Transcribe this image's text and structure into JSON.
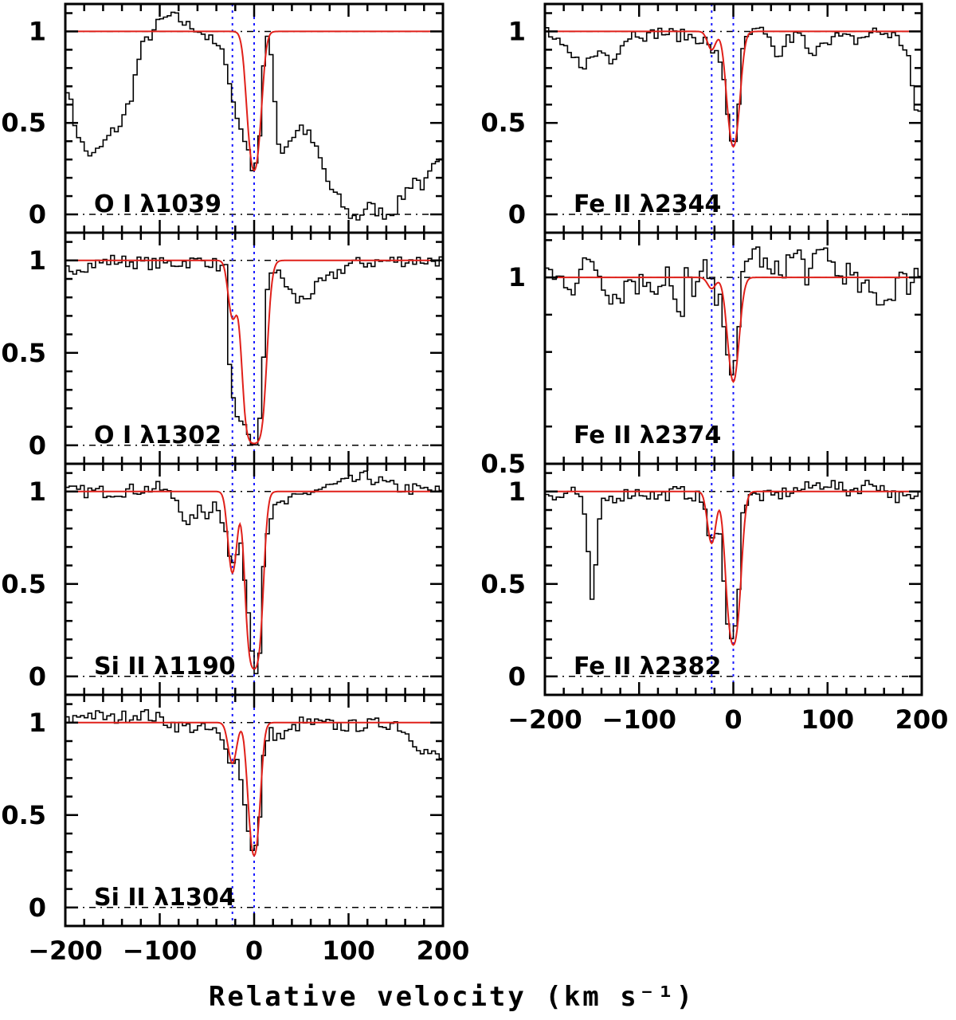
{
  "chart_data": {
    "type": "line",
    "xlabel": "Relative velocity (km s⁻¹)",
    "xlim": [
      -200,
      200
    ],
    "xticks": [
      -200,
      -100,
      0,
      100,
      200
    ],
    "xtick_labels": [
      "−200",
      "−100",
      "0",
      "100",
      "200"
    ],
    "component_velocities": [
      -23,
      0
    ],
    "colors": {
      "data": "#000000",
      "fit": "#e0201a",
      "components": "#1a1aff",
      "zero_line": "#000000"
    },
    "panels": [
      {
        "label": "O I λ1039",
        "ylim": [
          -0.1,
          1.15
        ],
        "yticks": [
          0,
          0.5,
          1
        ],
        "ytick_labels": [
          "0",
          "0.5",
          "1"
        ],
        "fit_components": [
          {
            "v": -23,
            "depth": 0.0,
            "b": 7
          },
          {
            "v": 0,
            "depth": 0.76,
            "b": 8
          }
        ],
        "data_anchors": [
          [
            -200,
            0.75
          ],
          [
            -190,
            0.5
          ],
          [
            -180,
            0.35
          ],
          [
            -170,
            0.32
          ],
          [
            -160,
            0.38
          ],
          [
            -150,
            0.45
          ],
          [
            -140,
            0.5
          ],
          [
            -130,
            0.65
          ],
          [
            -120,
            0.9
          ],
          [
            -110,
            0.98
          ],
          [
            -100,
            1.05
          ],
          [
            -90,
            1.08
          ],
          [
            -80,
            1.07
          ],
          [
            -70,
            1.03
          ],
          [
            -60,
            1.02
          ],
          [
            -50,
            0.97
          ],
          [
            -40,
            0.92
          ],
          [
            -30,
            0.85
          ],
          [
            -20,
            0.55
          ],
          [
            -10,
            0.42
          ],
          [
            -5,
            0.3
          ],
          [
            0,
            0.25
          ],
          [
            5,
            0.35
          ],
          [
            10,
            0.8
          ],
          [
            15,
            0.98
          ],
          [
            20,
            0.8
          ],
          [
            25,
            0.4
          ],
          [
            30,
            0.35
          ],
          [
            40,
            0.42
          ],
          [
            50,
            0.48
          ],
          [
            60,
            0.42
          ],
          [
            70,
            0.3
          ],
          [
            80,
            0.15
          ],
          [
            90,
            0.08
          ],
          [
            100,
            0.0
          ],
          [
            110,
            -0.02
          ],
          [
            120,
            0.05
          ],
          [
            130,
            0.02
          ],
          [
            140,
            0.0
          ],
          [
            150,
            0.03
          ],
          [
            160,
            0.12
          ],
          [
            170,
            0.2
          ],
          [
            180,
            0.15
          ],
          [
            190,
            0.25
          ],
          [
            200,
            0.28
          ]
        ]
      },
      {
        "label": "O I λ1302",
        "ylim": [
          -0.1,
          1.15
        ],
        "yticks": [
          0,
          0.5,
          1
        ],
        "ytick_labels": [
          "0",
          "0.5",
          "1"
        ],
        "fit_components": [
          {
            "v": -23,
            "depth": 0.3,
            "b": 6
          },
          {
            "v": 0,
            "depth": 0.99,
            "b": 10
          }
        ],
        "data_anchors": [
          [
            -200,
            0.95
          ],
          [
            -150,
            1.0
          ],
          [
            -100,
            0.98
          ],
          [
            -50,
            1.0
          ],
          [
            -30,
            0.95
          ],
          [
            -25,
            0.35
          ],
          [
            -20,
            0.15
          ],
          [
            -15,
            0.1
          ],
          [
            -10,
            0.08
          ],
          [
            -5,
            0.03
          ],
          [
            0,
            0.0
          ],
          [
            5,
            0.05
          ],
          [
            10,
            0.45
          ],
          [
            15,
            0.95
          ],
          [
            20,
            0.95
          ],
          [
            30,
            0.9
          ],
          [
            40,
            0.82
          ],
          [
            45,
            0.78
          ],
          [
            55,
            0.8
          ],
          [
            70,
            0.87
          ],
          [
            80,
            0.9
          ],
          [
            100,
            0.98
          ],
          [
            150,
            1.0
          ],
          [
            200,
            1.0
          ]
        ]
      },
      {
        "label": "Si II λ1190",
        "ylim": [
          -0.1,
          1.15
        ],
        "yticks": [
          0,
          0.5,
          1
        ],
        "ytick_labels": [
          "0",
          "0.5",
          "1"
        ],
        "fit_components": [
          {
            "v": -23,
            "depth": 0.44,
            "b": 6
          },
          {
            "v": 0,
            "depth": 0.96,
            "b": 8
          }
        ],
        "data_anchors": [
          [
            -200,
            1.0
          ],
          [
            -150,
            1.0
          ],
          [
            -100,
            1.02
          ],
          [
            -80,
            0.95
          ],
          [
            -70,
            0.8
          ],
          [
            -60,
            0.9
          ],
          [
            -50,
            0.88
          ],
          [
            -40,
            0.95
          ],
          [
            -30,
            0.8
          ],
          [
            -25,
            0.6
          ],
          [
            -20,
            0.62
          ],
          [
            -15,
            0.72
          ],
          [
            -10,
            0.55
          ],
          [
            -5,
            0.3
          ],
          [
            0,
            0.05
          ],
          [
            5,
            0.05
          ],
          [
            10,
            0.6
          ],
          [
            15,
            0.85
          ],
          [
            25,
            0.92
          ],
          [
            40,
            0.95
          ],
          [
            60,
            1.0
          ],
          [
            100,
            1.05
          ],
          [
            120,
            1.08
          ],
          [
            150,
            1.02
          ],
          [
            200,
            1.0
          ]
        ]
      },
      {
        "label": "Si II λ1304",
        "ylim": [
          -0.1,
          1.15
        ],
        "yticks": [
          0,
          0.5,
          1
        ],
        "ytick_labels": [
          "0",
          "0.5",
          "1"
        ],
        "fit_components": [
          {
            "v": -23,
            "depth": 0.22,
            "b": 6
          },
          {
            "v": 0,
            "depth": 0.72,
            "b": 7
          }
        ],
        "data_anchors": [
          [
            -200,
            1.0
          ],
          [
            -180,
            1.05
          ],
          [
            -150,
            1.02
          ],
          [
            -120,
            1.05
          ],
          [
            -100,
            1.02
          ],
          [
            -80,
            0.98
          ],
          [
            -60,
            0.97
          ],
          [
            -40,
            0.95
          ],
          [
            -30,
            0.85
          ],
          [
            -25,
            0.8
          ],
          [
            -20,
            0.82
          ],
          [
            -15,
            0.75
          ],
          [
            -10,
            0.55
          ],
          [
            -5,
            0.4
          ],
          [
            0,
            0.28
          ],
          [
            5,
            0.4
          ],
          [
            10,
            0.8
          ],
          [
            15,
            0.95
          ],
          [
            30,
            0.92
          ],
          [
            50,
            1.0
          ],
          [
            100,
            0.98
          ],
          [
            150,
            1.0
          ],
          [
            180,
            0.85
          ],
          [
            200,
            0.8
          ]
        ]
      },
      {
        "label": "Fe II λ2344",
        "ylim": [
          -0.1,
          1.15
        ],
        "yticks": [
          0,
          0.5,
          1
        ],
        "ytick_labels": [
          "0",
          "0.5",
          "1"
        ],
        "fit_components": [
          {
            "v": -23,
            "depth": 0.1,
            "b": 6
          },
          {
            "v": 0,
            "depth": 0.63,
            "b": 8
          }
        ],
        "data_anchors": [
          [
            -200,
            1.02
          ],
          [
            -190,
            0.95
          ],
          [
            -180,
            0.9
          ],
          [
            -170,
            0.85
          ],
          [
            -160,
            0.82
          ],
          [
            -150,
            0.85
          ],
          [
            -140,
            0.9
          ],
          [
            -130,
            0.85
          ],
          [
            -120,
            0.92
          ],
          [
            -110,
            0.98
          ],
          [
            -100,
            1.0
          ],
          [
            -90,
            0.97
          ],
          [
            -80,
            1.0
          ],
          [
            -60,
            0.98
          ],
          [
            -40,
            0.97
          ],
          [
            -30,
            0.95
          ],
          [
            -25,
            0.9
          ],
          [
            -20,
            0.9
          ],
          [
            -10,
            0.75
          ],
          [
            -5,
            0.5
          ],
          [
            0,
            0.36
          ],
          [
            5,
            0.5
          ],
          [
            10,
            0.88
          ],
          [
            15,
            0.98
          ],
          [
            30,
            1.0
          ],
          [
            40,
            0.92
          ],
          [
            50,
            0.85
          ],
          [
            55,
            0.95
          ],
          [
            70,
            0.98
          ],
          [
            75,
            0.95
          ],
          [
            85,
            0.82
          ],
          [
            90,
            0.95
          ],
          [
            110,
            0.97
          ],
          [
            130,
            0.95
          ],
          [
            150,
            1.0
          ],
          [
            170,
            0.98
          ],
          [
            185,
            0.9
          ],
          [
            190,
            0.7
          ],
          [
            195,
            0.5
          ],
          [
            200,
            0.6
          ]
        ]
      },
      {
        "label": "Fe II λ2374",
        "ylim": [
          0.5,
          1.12
        ],
        "yticks": [
          0.5,
          1
        ],
        "ytick_labels": [
          "0.5",
          "1"
        ],
        "fit_components": [
          {
            "v": -23,
            "depth": 0.03,
            "b": 6
          },
          {
            "v": 0,
            "depth": 0.28,
            "b": 8
          }
        ],
        "data_anchors": [
          [
            -200,
            1.05
          ],
          [
            -190,
            0.99
          ],
          [
            -180,
            1.0
          ],
          [
            -170,
            0.98
          ],
          [
            -160,
            1.02
          ],
          [
            -150,
            1.05
          ],
          [
            -140,
            1.0
          ],
          [
            -130,
            0.96
          ],
          [
            -120,
            0.95
          ],
          [
            -110,
            1.0
          ],
          [
            -100,
            0.98
          ],
          [
            -90,
            1.0
          ],
          [
            -80,
            0.97
          ],
          [
            -70,
            1.02
          ],
          [
            -60,
            0.9
          ],
          [
            -55,
            0.87
          ],
          [
            -50,
            1.0
          ],
          [
            -40,
            0.97
          ],
          [
            -30,
            1.02
          ],
          [
            -20,
            0.95
          ],
          [
            -10,
            0.9
          ],
          [
            -5,
            0.8
          ],
          [
            0,
            0.72
          ],
          [
            5,
            0.8
          ],
          [
            10,
            1.0
          ],
          [
            15,
            1.05
          ],
          [
            20,
            1.08
          ],
          [
            30,
            1.05
          ],
          [
            40,
            1.0
          ],
          [
            50,
            1.02
          ],
          [
            60,
            1.05
          ],
          [
            70,
            1.06
          ],
          [
            80,
            1.0
          ],
          [
            90,
            1.05
          ],
          [
            100,
            1.08
          ],
          [
            110,
            1.0
          ],
          [
            120,
            1.02
          ],
          [
            130,
            0.98
          ],
          [
            150,
            0.95
          ],
          [
            165,
            0.94
          ],
          [
            175,
            1.0
          ],
          [
            185,
            0.98
          ],
          [
            195,
            1.02
          ],
          [
            200,
            1.0
          ]
        ]
      },
      {
        "label": "Fe II λ2382",
        "ylim": [
          -0.1,
          1.15
        ],
        "yticks": [
          0,
          0.5,
          1
        ],
        "ytick_labels": [
          "0",
          "0.5",
          "1"
        ],
        "fit_components": [
          {
            "v": -23,
            "depth": 0.28,
            "b": 6
          },
          {
            "v": 0,
            "depth": 0.83,
            "b": 8
          }
        ],
        "data_anchors": [
          [
            -200,
            1.0
          ],
          [
            -180,
            0.97
          ],
          [
            -170,
            1.02
          ],
          [
            -160,
            0.95
          ],
          [
            -155,
            0.7
          ],
          [
            -150,
            0.42
          ],
          [
            -145,
            0.62
          ],
          [
            -140,
            0.95
          ],
          [
            -120,
            0.98
          ],
          [
            -100,
            1.0
          ],
          [
            -80,
            0.97
          ],
          [
            -60,
            1.0
          ],
          [
            -40,
            0.98
          ],
          [
            -30,
            0.92
          ],
          [
            -25,
            0.72
          ],
          [
            -20,
            0.73
          ],
          [
            -15,
            0.8
          ],
          [
            -10,
            0.55
          ],
          [
            -5,
            0.25
          ],
          [
            0,
            0.16
          ],
          [
            5,
            0.4
          ],
          [
            10,
            0.9
          ],
          [
            20,
            0.98
          ],
          [
            40,
            0.97
          ],
          [
            60,
            1.0
          ],
          [
            80,
            1.02
          ],
          [
            100,
            1.05
          ],
          [
            120,
            1.0
          ],
          [
            150,
            1.05
          ],
          [
            170,
            0.98
          ],
          [
            190,
            0.95
          ],
          [
            200,
            0.98
          ]
        ]
      }
    ]
  }
}
